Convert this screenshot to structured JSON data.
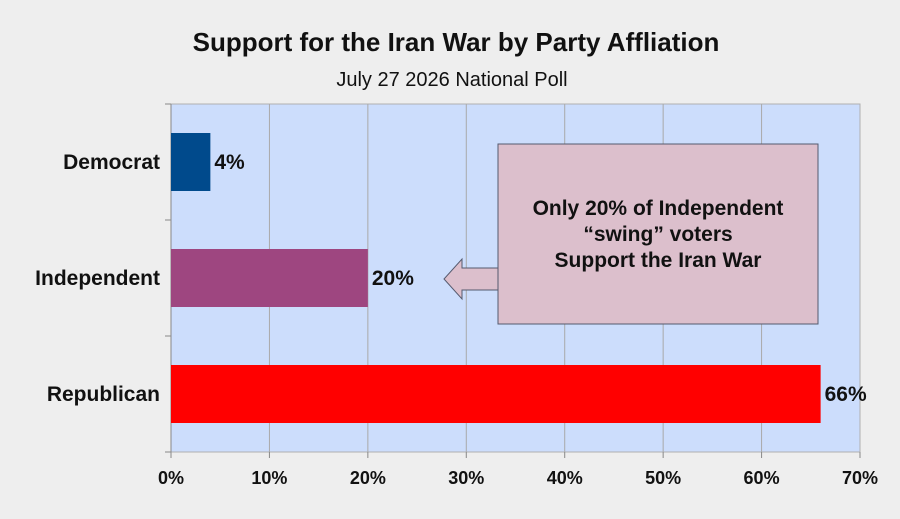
{
  "chart_data": {
    "type": "bar",
    "orientation": "horizontal",
    "title": "Support for the Iran War by Party Affliation",
    "subtitle": "July 27 2026 National Poll",
    "categories": [
      "Democrat",
      "Independent",
      "Republican"
    ],
    "values": [
      4,
      20,
      66
    ],
    "value_labels": [
      "4%",
      "20%",
      "66%"
    ],
    "bar_colors": [
      "#004a8c",
      "#9e4680",
      "#ff0000"
    ],
    "xlim": [
      0,
      70
    ],
    "x_ticks": [
      0,
      10,
      20,
      30,
      40,
      50,
      60,
      70
    ],
    "x_tick_labels": [
      "0%",
      "10%",
      "20%",
      "30%",
      "40%",
      "50%",
      "60%",
      "70%"
    ],
    "grid": true,
    "plot_background": "#ccddfc",
    "annotation": {
      "lines": [
        "Only 20% of Independent",
        "“swing” voters",
        "Support the Iran War"
      ],
      "box_color": "#dcbfcc",
      "points_to": "Independent"
    }
  }
}
